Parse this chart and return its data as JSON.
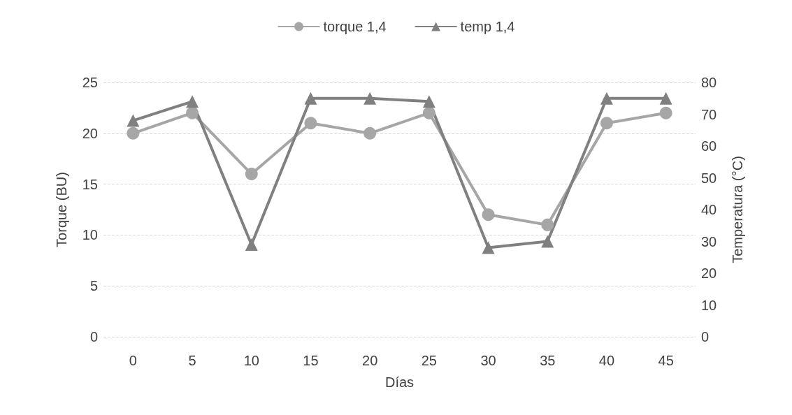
{
  "chart_data": {
    "type": "line",
    "xlabel": "Días",
    "ylabel": "Torque (BU)",
    "y2label": "Temperatura (°C)",
    "categories": [
      "0",
      "5",
      "10",
      "15",
      "20",
      "25",
      "30",
      "35",
      "40",
      "45"
    ],
    "series": [
      {
        "name": "torque 1,4",
        "color": "#a6a6a6",
        "marker": "circle",
        "values": [
          20,
          22,
          16,
          21,
          20,
          22,
          12,
          11,
          21,
          22
        ]
      },
      {
        "name": "temp 1,4",
        "color": "#808080",
        "marker": "triangle",
        "axis": "y2",
        "values": [
          68,
          74,
          29,
          75,
          75,
          74,
          28,
          30,
          75,
          75
        ]
      }
    ],
    "ylim": [
      0,
      25
    ],
    "yticks": [
      0,
      5,
      10,
      15,
      20,
      25
    ],
    "y2lim": [
      0,
      80
    ],
    "y2ticks": [
      0,
      10,
      20,
      30,
      40,
      50,
      60,
      70,
      80
    ],
    "grid": "y",
    "legend": "top"
  }
}
